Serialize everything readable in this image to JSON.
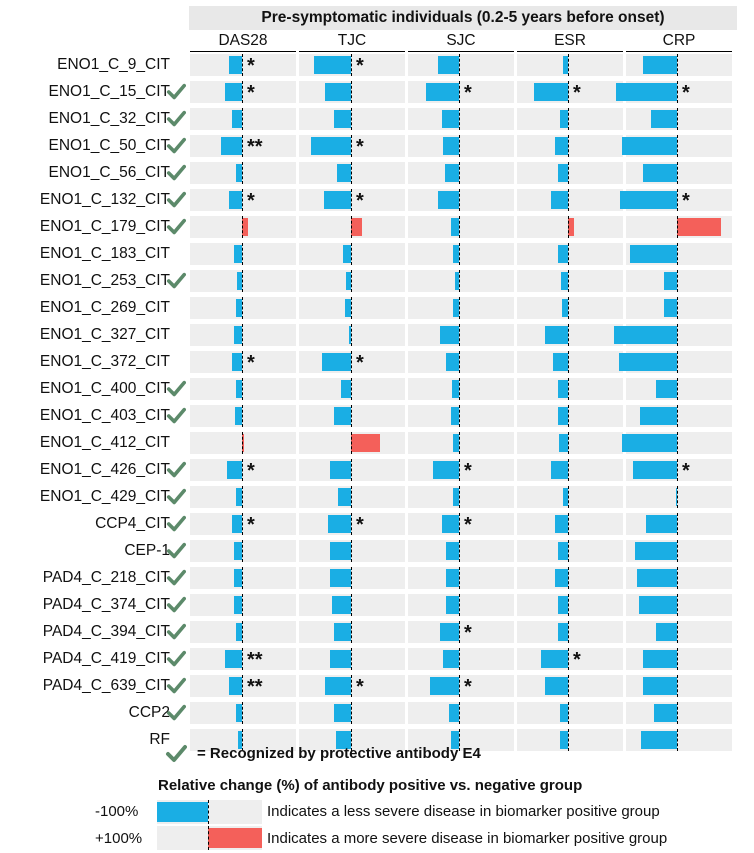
{
  "chart_data": {
    "type": "bar",
    "title": "Pre-symptomatic individuals (0.2-5 years before onset)",
    "columns": [
      "DAS28",
      "TJC",
      "SJC",
      "ESR",
      "CRP"
    ],
    "xlim": [
      -100,
      100
    ],
    "rows": [
      {
        "label": "ENO1_C_9_CIT",
        "check": false,
        "values": [
          -12,
          -35,
          -20,
          -5,
          -32
        ],
        "stars": [
          "*",
          "*",
          "",
          "",
          ""
        ]
      },
      {
        "label": "ENO1_C_15_CIT",
        "check": true,
        "values": [
          -16,
          -25,
          -31,
          -32,
          -58
        ],
        "stars": [
          "*",
          "",
          "*",
          "*",
          "*"
        ]
      },
      {
        "label": "ENO1_C_32_CIT",
        "check": true,
        "values": [
          -10,
          -16,
          -16,
          -8,
          -25
        ],
        "stars": [
          "",
          "",
          "",
          "",
          ""
        ]
      },
      {
        "label": "ENO1_C_50_CIT",
        "check": true,
        "values": [
          -20,
          -38,
          -15,
          -12,
          -52
        ],
        "stars": [
          "**",
          "*",
          "",
          "",
          ""
        ]
      },
      {
        "label": "ENO1_C_56_CIT",
        "check": true,
        "values": [
          -6,
          -13,
          -13,
          -10,
          -32
        ],
        "stars": [
          "",
          "",
          "",
          "",
          ""
        ]
      },
      {
        "label": "ENO1_C_132_CIT",
        "check": true,
        "values": [
          -12,
          -26,
          -20,
          -16,
          -54
        ],
        "stars": [
          "*",
          "*",
          "",
          "",
          "*"
        ]
      },
      {
        "label": "ENO1_C_179_CIT",
        "check": true,
        "values": [
          6,
          10,
          -8,
          6,
          42
        ],
        "stars": [
          "",
          "",
          "",
          "",
          ""
        ]
      },
      {
        "label": "ENO1_C_183_CIT",
        "check": false,
        "values": [
          -8,
          -8,
          -6,
          -10,
          -45
        ],
        "stars": [
          "",
          "",
          "",
          "",
          ""
        ]
      },
      {
        "label": "ENO1_C_253_CIT",
        "check": true,
        "values": [
          -5,
          -5,
          -4,
          -7,
          -12
        ],
        "stars": [
          "",
          "",
          "",
          "",
          ""
        ]
      },
      {
        "label": "ENO1_C_269_CIT",
        "check": false,
        "values": [
          -6,
          -6,
          -6,
          -6,
          -12
        ],
        "stars": [
          "",
          "",
          "",
          "",
          ""
        ]
      },
      {
        "label": "ENO1_C_327_CIT",
        "check": false,
        "values": [
          -8,
          -2,
          -18,
          -22,
          -60
        ],
        "stars": [
          "",
          "",
          "",
          "",
          ""
        ]
      },
      {
        "label": "ENO1_C_372_CIT",
        "check": false,
        "values": [
          -10,
          -28,
          -12,
          -14,
          -55
        ],
        "stars": [
          "*",
          "*",
          "",
          "",
          ""
        ]
      },
      {
        "label": "ENO1_C_400_CIT",
        "check": true,
        "values": [
          -6,
          -10,
          -7,
          -10,
          -20
        ],
        "stars": [
          "",
          "",
          "",
          "",
          ""
        ]
      },
      {
        "label": "ENO1_C_403_CIT",
        "check": true,
        "values": [
          -7,
          -16,
          -8,
          -10,
          -35
        ],
        "stars": [
          "",
          "",
          "",
          "",
          ""
        ]
      },
      {
        "label": "ENO1_C_412_CIT",
        "check": false,
        "values": [
          2,
          28,
          -6,
          -9,
          -52
        ],
        "stars": [
          "",
          "",
          "",
          "",
          ""
        ]
      },
      {
        "label": "ENO1_C_426_CIT",
        "check": true,
        "values": [
          -14,
          -20,
          -25,
          -16,
          -42
        ],
        "stars": [
          "*",
          "",
          "*",
          "",
          "*"
        ]
      },
      {
        "label": "ENO1_C_429_CIT",
        "check": true,
        "values": [
          -6,
          -12,
          -6,
          -5,
          -1
        ],
        "stars": [
          "",
          "",
          "",
          "",
          ""
        ]
      },
      {
        "label": "CCP4_CIT",
        "check": true,
        "values": [
          -10,
          -22,
          -16,
          -12,
          -30
        ],
        "stars": [
          "*",
          "*",
          "*",
          "",
          ""
        ]
      },
      {
        "label": "CEP-1",
        "check": true,
        "values": [
          -8,
          -20,
          -12,
          -10,
          -40
        ],
        "stars": [
          "",
          "",
          "",
          "",
          ""
        ]
      },
      {
        "label": "PAD4_C_218_CIT",
        "check": true,
        "values": [
          -8,
          -20,
          -12,
          -12,
          -38
        ],
        "stars": [
          "",
          "",
          "",
          "",
          ""
        ]
      },
      {
        "label": "PAD4_C_374_CIT",
        "check": true,
        "values": [
          -8,
          -18,
          -12,
          -10,
          -36
        ],
        "stars": [
          "",
          "",
          "",
          "",
          ""
        ]
      },
      {
        "label": "PAD4_C_394_CIT",
        "check": true,
        "values": [
          -6,
          -16,
          -18,
          -10,
          -20
        ],
        "stars": [
          "",
          "",
          "*",
          "",
          ""
        ]
      },
      {
        "label": "PAD4_C_419_CIT",
        "check": true,
        "values": [
          -16,
          -20,
          -15,
          -26,
          -32
        ],
        "stars": [
          "**",
          "",
          "",
          "*",
          ""
        ]
      },
      {
        "label": "PAD4_C_639_CIT",
        "check": true,
        "values": [
          -12,
          -25,
          -28,
          -22,
          -32
        ],
        "stars": [
          "**",
          "*",
          "*",
          "",
          ""
        ]
      },
      {
        "label": "CCP2",
        "check": true,
        "values": [
          -6,
          -16,
          -10,
          -8,
          -22
        ],
        "stars": [
          "",
          "",
          "",
          "",
          ""
        ]
      },
      {
        "label": "RF",
        "check": false,
        "values": [
          -4,
          -14,
          -8,
          -8,
          -34
        ],
        "stars": [
          "",
          "",
          "",
          "",
          ""
        ]
      }
    ],
    "colors": {
      "negative": "#1aaee4",
      "positive": "#f4605a",
      "cell_bg": "#eeeeee",
      "check": "#5c8a6a"
    }
  },
  "legend": {
    "check_note": "= Recognized by protective antibody E4",
    "relative_change_title": "Relative change (%) of antibody positive vs. negative group",
    "neg_label": "-100%",
    "neg_text": "Indicates a less severe disease in biomarker positive group",
    "pos_label": "+100%",
    "pos_text": "Indicates a more severe disease in biomarker positive group"
  }
}
